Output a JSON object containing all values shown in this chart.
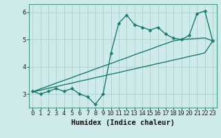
{
  "xlabel": "Humidex (Indice chaleur)",
  "background_color": "#ceeaea",
  "line_color": "#1a7a6e",
  "grid_color": "#aed4d4",
  "xlim": [
    -0.5,
    23.5
  ],
  "ylim": [
    2.5,
    6.3
  ],
  "x_values": [
    0,
    1,
    2,
    3,
    4,
    5,
    6,
    7,
    8,
    9,
    10,
    11,
    12,
    13,
    14,
    15,
    16,
    17,
    18,
    19,
    20,
    21,
    22,
    23
  ],
  "y_main": [
    3.1,
    3.0,
    3.1,
    3.2,
    3.1,
    3.2,
    3.0,
    2.9,
    2.62,
    3.0,
    4.5,
    5.6,
    5.9,
    5.55,
    5.45,
    5.35,
    5.45,
    5.2,
    5.05,
    5.0,
    5.15,
    5.95,
    6.05,
    4.95
  ],
  "y_line1": [
    3.08,
    3.14,
    3.21,
    3.27,
    3.34,
    3.4,
    3.47,
    3.53,
    3.6,
    3.66,
    3.73,
    3.79,
    3.86,
    3.92,
    3.99,
    4.05,
    4.12,
    4.18,
    4.25,
    4.31,
    4.38,
    4.44,
    4.51,
    4.95
  ],
  "y_line2": [
    3.08,
    3.19,
    3.29,
    3.4,
    3.5,
    3.6,
    3.71,
    3.81,
    3.92,
    4.02,
    4.12,
    4.23,
    4.33,
    4.44,
    4.54,
    4.64,
    4.75,
    4.85,
    4.95,
    5.0,
    5.02,
    5.04,
    5.06,
    4.95
  ],
  "yticks": [
    3,
    4,
    5,
    6
  ],
  "xticks": [
    0,
    1,
    2,
    3,
    4,
    5,
    6,
    7,
    8,
    9,
    10,
    11,
    12,
    13,
    14,
    15,
    16,
    17,
    18,
    19,
    20,
    21,
    22,
    23
  ],
  "tick_font_size": 6.5,
  "xlabel_font_size": 7.5,
  "marker_size": 2.5,
  "line_width": 1.0
}
